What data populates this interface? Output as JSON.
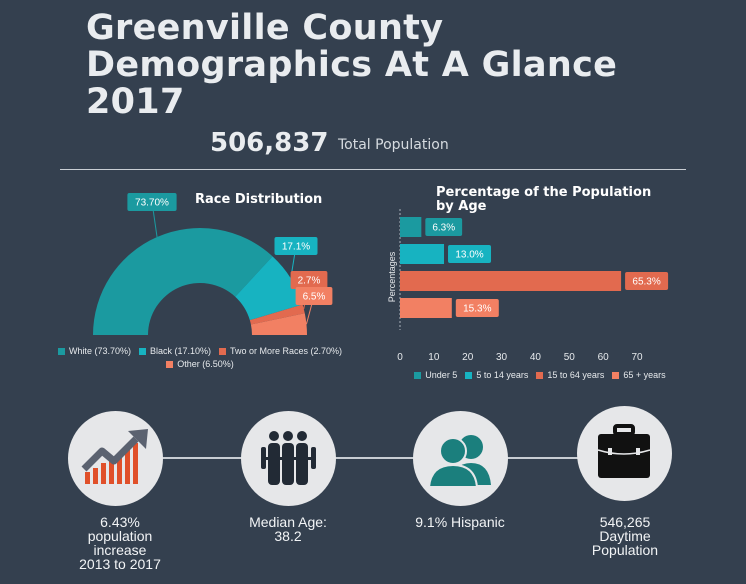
{
  "header": {
    "title_lines": [
      "Greenville County",
      "Demographics At A Glance",
      "2017"
    ],
    "total_population": "506,837",
    "total_population_label": "Total Population"
  },
  "colors": {
    "background": "#34404f",
    "teal_dark": "#1b9aa0",
    "teal_light": "#17b3c1",
    "coral": "#e26a4f",
    "salmon": "#f28063",
    "icon_dark": "#222a35",
    "icon_orange": "#e0502a",
    "icon_gray": "#5b6270",
    "icon_teal": "#1b7f7d"
  },
  "chart_data": [
    {
      "type": "pie",
      "variant": "half-donut",
      "title": "Race Distribution",
      "categories": [
        "White (73.70%)",
        "Black (17.10%)",
        "Two or More Races (2.70%)",
        "Other (6.50%)"
      ],
      "values": [
        73.7,
        17.1,
        2.7,
        6.5
      ],
      "data_labels": [
        "73.70%",
        "17.1%",
        "2.7%",
        "6.5%"
      ],
      "colors": [
        "#1b9aa0",
        "#17b3c1",
        "#e26a4f",
        "#f28063"
      ],
      "legend": "bottom"
    },
    {
      "type": "bar",
      "orientation": "horizontal",
      "title": "Percentage of the Population by Age",
      "ylabel": "Percentages",
      "categories": [
        "Under 5",
        "5 to 14 years",
        "15 to 64 years",
        "65 + years"
      ],
      "values": [
        6.3,
        13.0,
        65.3,
        15.3
      ],
      "data_labels": [
        "6.3%",
        "13.0%",
        "65.3%",
        "15.3%"
      ],
      "colors": [
        "#1b9aa0",
        "#17b3c1",
        "#e26a4f",
        "#f28063"
      ],
      "xlim": [
        0,
        70
      ],
      "xticks": [
        "0",
        "10",
        "20",
        "30",
        "40",
        "50",
        "60",
        "70"
      ],
      "legend": "bottom"
    }
  ],
  "stats": [
    {
      "icon": "growth-chart-icon",
      "lines": [
        "6.43%",
        "population",
        "increase",
        "2013 to 2017"
      ]
    },
    {
      "icon": "people-group-icon",
      "lines": [
        "Median Age:",
        "38.2"
      ]
    },
    {
      "icon": "two-people-icon",
      "lines": [
        "9.1% Hispanic"
      ]
    },
    {
      "icon": "briefcase-icon",
      "lines": [
        "546,265",
        "Daytime",
        "Population"
      ]
    }
  ]
}
